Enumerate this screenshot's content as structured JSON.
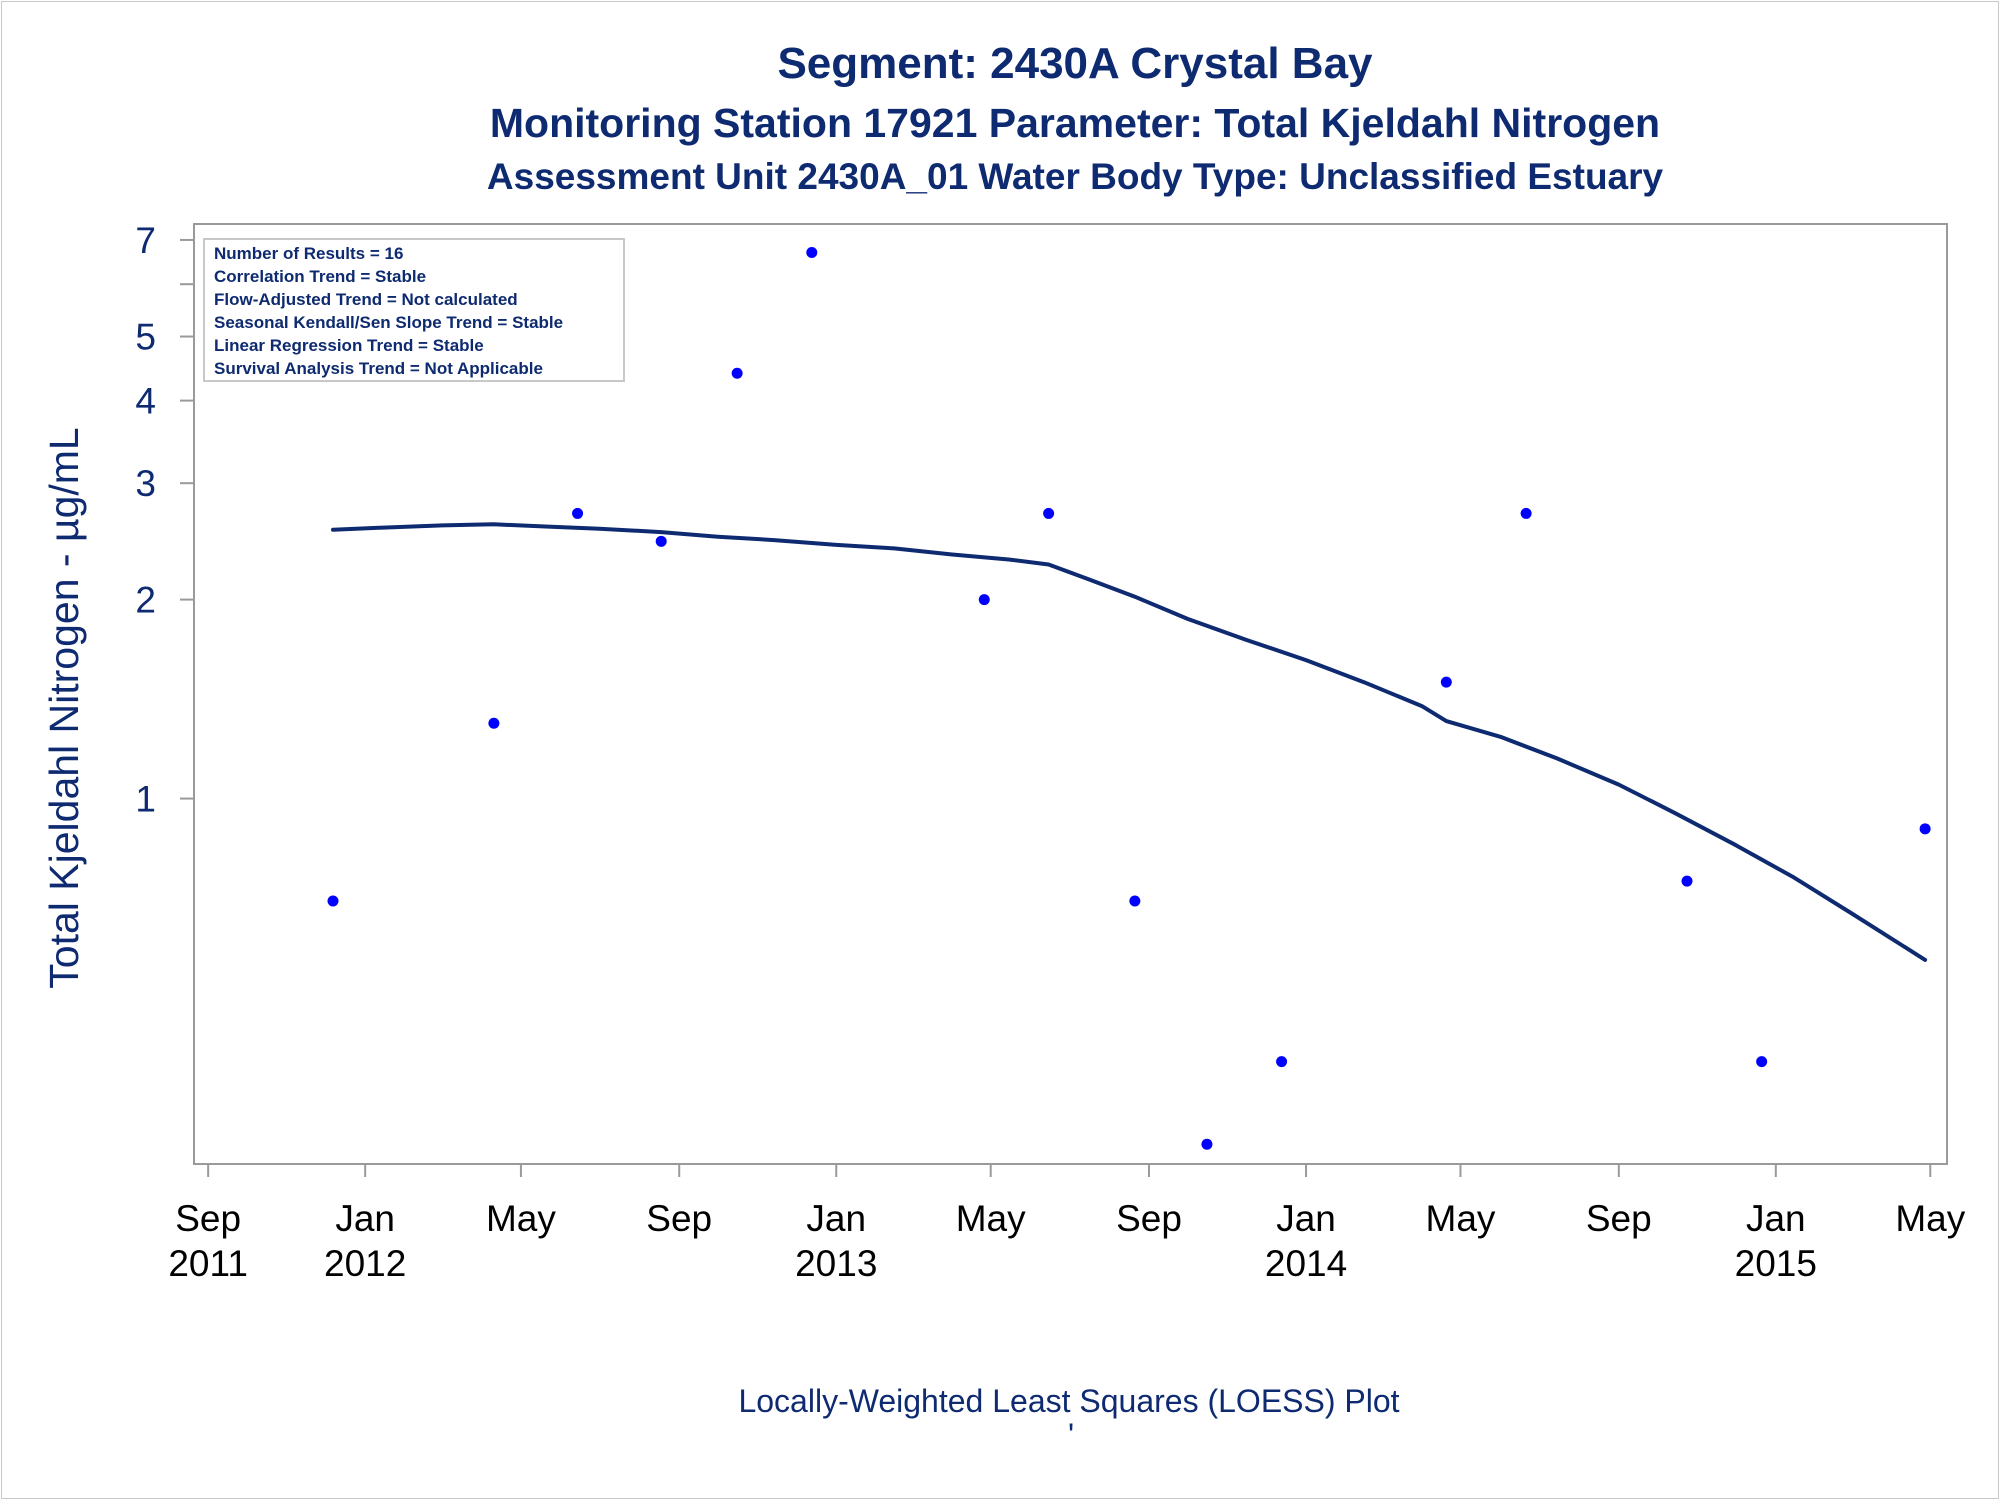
{
  "chart_data": {
    "type": "scatter",
    "title": "Segment: 2430A  Crystal Bay",
    "subtitle1": "Monitoring Station 17921 Parameter: Total Kjeldahl Nitrogen",
    "subtitle2": "Assessment Unit 2430A_01   Water Body Type: Unclassified Estuary",
    "ylabel": "Total Kjeldahl Nitrogen -  µg/mL",
    "xlabel": "",
    "footnote": "Locally-Weighted Least Squares (LOESS) Plot",
    "footnote_mark": "'",
    "y_scale": "log",
    "ylim": [
      0.28,
      7.4
    ],
    "xlim": [
      "2011-08-21",
      "2015-05-14"
    ],
    "y_ticks": [
      {
        "value": 1,
        "label": "1"
      },
      {
        "value": 2,
        "label": "2"
      },
      {
        "value": 3,
        "label": "3"
      },
      {
        "value": 4,
        "label": "4"
      },
      {
        "value": 5,
        "label": "5"
      },
      {
        "value": 7,
        "label": "7"
      }
    ],
    "y_minor_ticks": [
      6
    ],
    "x_ticks": [
      {
        "date": "2011-09-01",
        "label": [
          "Sep",
          "2011"
        ]
      },
      {
        "date": "2012-01-01",
        "label": [
          "Jan",
          "2012"
        ]
      },
      {
        "date": "2012-05-01",
        "label": [
          "May",
          ""
        ]
      },
      {
        "date": "2012-09-01",
        "label": [
          "Sep",
          ""
        ]
      },
      {
        "date": "2013-01-01",
        "label": [
          "Jan",
          "2013"
        ]
      },
      {
        "date": "2013-05-01",
        "label": [
          "May",
          ""
        ]
      },
      {
        "date": "2013-09-01",
        "label": [
          "Sep",
          ""
        ]
      },
      {
        "date": "2014-01-01",
        "label": [
          "Jan",
          "2014"
        ]
      },
      {
        "date": "2014-05-01",
        "label": [
          "May",
          ""
        ]
      },
      {
        "date": "2014-09-01",
        "label": [
          "Sep",
          ""
        ]
      },
      {
        "date": "2015-01-01",
        "label": [
          "Jan",
          "2015"
        ]
      },
      {
        "date": "2015-05-01",
        "label": [
          "May",
          ""
        ]
      }
    ],
    "series": [
      {
        "type": "scatter",
        "points": [
          {
            "x": "2011-12-07",
            "y": 0.7
          },
          {
            "x": "2012-04-10",
            "y": 1.3
          },
          {
            "x": "2012-06-14",
            "y": 2.7
          },
          {
            "x": "2012-08-18",
            "y": 2.45
          },
          {
            "x": "2012-10-16",
            "y": 4.4
          },
          {
            "x": "2012-12-13",
            "y": 6.7
          },
          {
            "x": "2013-04-26",
            "y": 2.0
          },
          {
            "x": "2013-06-15",
            "y": 2.7
          },
          {
            "x": "2013-08-21",
            "y": 0.7
          },
          {
            "x": "2013-10-16",
            "y": 0.3
          },
          {
            "x": "2013-12-13",
            "y": 0.4
          },
          {
            "x": "2014-04-20",
            "y": 1.5
          },
          {
            "x": "2014-06-21",
            "y": 2.7
          },
          {
            "x": "2014-10-24",
            "y": 0.75
          },
          {
            "x": "2014-12-21",
            "y": 0.4
          },
          {
            "x": "2015-04-27",
            "y": 0.9
          }
        ]
      },
      {
        "type": "line",
        "points": [
          {
            "x": "2011-12-07",
            "y": 2.55
          },
          {
            "x": "2012-01-15",
            "y": 2.57
          },
          {
            "x": "2012-03-01",
            "y": 2.59
          },
          {
            "x": "2012-04-10",
            "y": 2.6
          },
          {
            "x": "2012-05-20",
            "y": 2.58
          },
          {
            "x": "2012-07-01",
            "y": 2.56
          },
          {
            "x": "2012-08-18",
            "y": 2.53
          },
          {
            "x": "2012-10-01",
            "y": 2.49
          },
          {
            "x": "2012-11-15",
            "y": 2.46
          },
          {
            "x": "2013-01-01",
            "y": 2.42
          },
          {
            "x": "2013-02-15",
            "y": 2.39
          },
          {
            "x": "2013-04-01",
            "y": 2.34
          },
          {
            "x": "2013-05-15",
            "y": 2.3
          },
          {
            "x": "2013-06-15",
            "y": 2.26
          },
          {
            "x": "2013-07-15",
            "y": 2.15
          },
          {
            "x": "2013-08-21",
            "y": 2.02
          },
          {
            "x": "2013-10-01",
            "y": 1.87
          },
          {
            "x": "2013-11-15",
            "y": 1.74
          },
          {
            "x": "2014-01-01",
            "y": 1.62
          },
          {
            "x": "2014-02-15",
            "y": 1.5
          },
          {
            "x": "2014-04-01",
            "y": 1.38
          },
          {
            "x": "2014-04-20",
            "y": 1.31
          },
          {
            "x": "2014-06-01",
            "y": 1.24
          },
          {
            "x": "2014-07-15",
            "y": 1.15
          },
          {
            "x": "2014-09-01",
            "y": 1.05
          },
          {
            "x": "2014-10-15",
            "y": 0.95
          },
          {
            "x": "2014-12-01",
            "y": 0.85
          },
          {
            "x": "2015-01-15",
            "y": 0.76
          },
          {
            "x": "2015-03-01",
            "y": 0.67
          },
          {
            "x": "2015-04-27",
            "y": 0.57
          }
        ]
      }
    ],
    "grid": false,
    "legend": "top-left",
    "colors": {
      "text": "#0e2a70",
      "points": "#0000ff",
      "line": "#0e2a70",
      "frame": "#9a9a9a"
    }
  },
  "stats_box": [
    "Number of Results = 16",
    "Correlation Trend = Stable",
    "Flow-Adjusted Trend = Not calculated",
    "Seasonal Kendall/Sen Slope Trend = Stable",
    "Linear Regression Trend = Stable",
    "Survival Analysis Trend = Not Applicable"
  ]
}
